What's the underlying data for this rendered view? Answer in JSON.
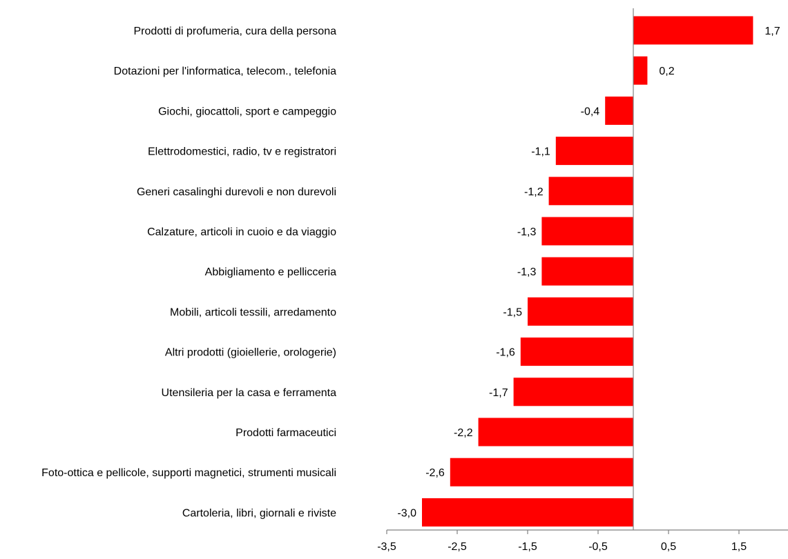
{
  "chart_data": {
    "type": "bar",
    "orientation": "horizontal",
    "categories": [
      "Prodotti di profumeria, cura della persona",
      "Dotazioni per l'informatica,  telecom., telefonia",
      "Giochi, giocattoli, sport e campeggio",
      "Elettrodomestici, radio, tv e registratori",
      "Generi casalinghi durevoli e non durevoli",
      "Calzature, articoli in cuoio e da viaggio",
      "Abbigliamento e pellicceria",
      "Mobili, articoli tessili, arredamento",
      "Altri prodotti (gioiellerie, orologerie)",
      "Utensileria per la casa e ferramenta",
      "Prodotti farmaceutici",
      "Foto-ottica e pellicole, supporti magnetici, strumenti  musicali",
      "Cartoleria, libri, giornali e riviste"
    ],
    "values": [
      1.7,
      0.2,
      -0.4,
      -1.1,
      -1.2,
      -1.3,
      -1.3,
      -1.5,
      -1.6,
      -1.7,
      -2.2,
      -2.6,
      -3.0
    ],
    "value_labels": [
      "1,7",
      "0,2",
      "-0,4",
      "-1,1",
      "-1,2",
      "-1,3",
      "-1,3",
      "-1,5",
      "-1,6",
      "-1,7",
      "-2,2",
      "-2,6",
      "-3,0"
    ],
    "xlim": [
      -3.5,
      2.2
    ],
    "ticks": [
      -3.5,
      -2.5,
      -1.5,
      -0.5,
      0.5,
      1.5
    ],
    "tick_labels": [
      "-3,5",
      "-2,5",
      "-1,5",
      "-0,5",
      "0,5",
      "1,5"
    ],
    "bar_color": "#ff0000",
    "axis_color": "#808080",
    "grid": false,
    "legend": "none"
  }
}
